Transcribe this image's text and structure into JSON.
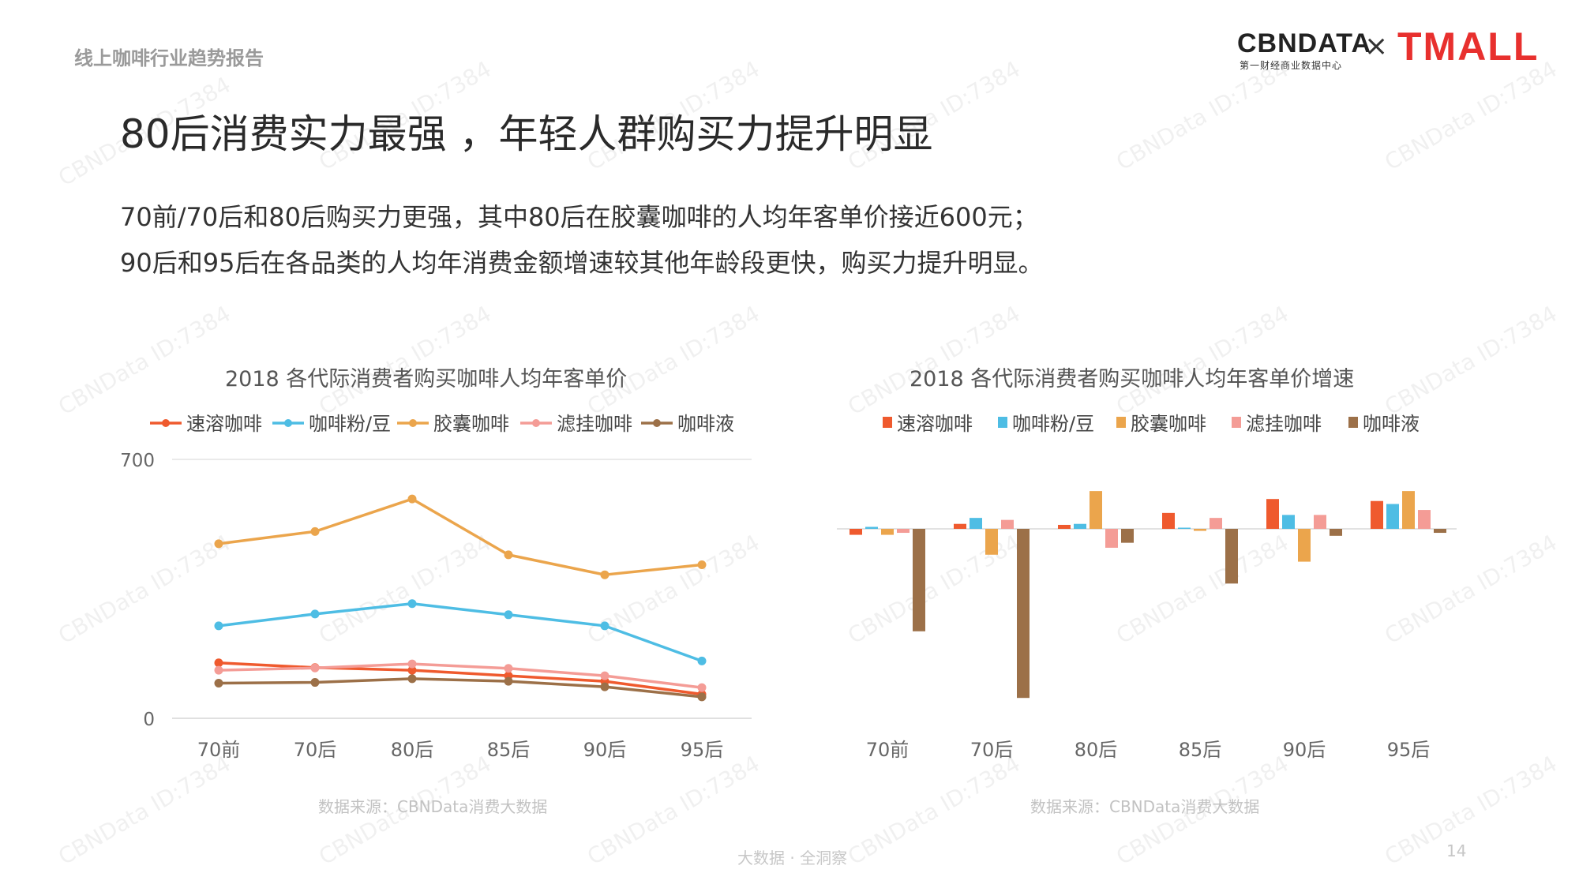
{
  "header": {
    "report_label": "线上咖啡行业趋势报告",
    "logo_cbn": "CBNDATA",
    "logo_cbn_sub": "第一财经商业数据中心",
    "logo_x": "×",
    "logo_tmall": "TMALL"
  },
  "title": "80后消费实力最强 ，年轻人群购买力提升明显",
  "subtitle": {
    "line1": "70前/70后和80后购买力更强，其中80后在胶囊咖啡的人均年客单价接近600元；",
    "line2": "90后和95后在各品类的人均年消费金额增速较其他年龄段更快，购买力提升明显。"
  },
  "colors": {
    "速溶咖啡": "#ef5a2e",
    "咖啡粉/豆": "#4ebde4",
    "胶囊咖啡": "#eba54c",
    "滤挂咖啡": "#f49c96",
    "咖啡液": "#9c7048"
  },
  "chart_data": [
    {
      "type": "line",
      "title": "2018 各代际消费者购买咖啡人均年客单价",
      "categories": [
        "70前",
        "70后",
        "80后",
        "85后",
        "90后",
        "95后"
      ],
      "ylim": [
        0,
        700
      ],
      "yticks": [
        "0",
        "700"
      ],
      "legend_position": "top",
      "series": [
        {
          "name": "速溶咖啡",
          "values": [
            150,
            137,
            130,
            115,
            100,
            65
          ]
        },
        {
          "name": "咖啡粉/豆",
          "values": [
            250,
            282,
            310,
            280,
            250,
            155
          ]
        },
        {
          "name": "胶囊咖啡",
          "values": [
            472,
            505,
            593,
            442,
            388,
            415
          ]
        },
        {
          "name": "滤挂咖啡",
          "values": [
            130,
            136,
            147,
            135,
            115,
            83
          ]
        },
        {
          "name": "咖啡液",
          "values": [
            95,
            97,
            107,
            100,
            85,
            58
          ]
        }
      ],
      "source": "数据来源：CBNData消费大数据"
    },
    {
      "type": "bar",
      "title": "2018 各代际消费者购买咖啡人均年客单价增速",
      "categories": [
        "70前",
        "70后",
        "80后",
        "85后",
        "90后",
        "95后"
      ],
      "ylim": [
        -170,
        40
      ],
      "legend_position": "top",
      "series": [
        {
          "name": "速溶咖啡",
          "values": [
            -6,
            5,
            4,
            16,
            30,
            28
          ]
        },
        {
          "name": "咖啡粉/豆",
          "values": [
            2,
            11,
            5,
            0,
            14,
            25
          ]
        },
        {
          "name": "胶囊咖啡",
          "values": [
            -6,
            -26,
            38,
            -2,
            -33,
            38
          ]
        },
        {
          "name": "滤挂咖啡",
          "values": [
            -4,
            9,
            -19,
            11,
            14,
            19
          ]
        },
        {
          "name": "咖啡液",
          "values": [
            -103,
            -170,
            -14,
            -55,
            -7,
            -4
          ]
        }
      ],
      "source": "数据来源：CBNData消费大数据"
    }
  ],
  "footer": {
    "text": "大数据 · 全洞察",
    "page_number": "14"
  },
  "watermark": "CBNData ID:7384"
}
